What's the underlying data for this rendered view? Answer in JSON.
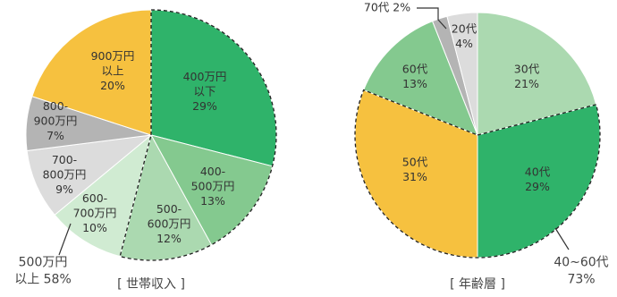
{
  "chart_data": [
    {
      "type": "pie",
      "caption": "[ 世帯収入 ]",
      "slices": [
        {
          "label": [
            "400万円",
            "以下",
            "29%"
          ],
          "value": 29,
          "color": "#2fb36a",
          "text_color": "#333333"
        },
        {
          "label": [
            "400-",
            "500万円",
            "13%"
          ],
          "value": 13,
          "color": "#84c98f",
          "text_color": "#333333"
        },
        {
          "label": [
            "500-",
            "600万円",
            "12%"
          ],
          "value": 12,
          "color": "#abd9b0",
          "text_color": "#333333"
        },
        {
          "label": [
            "600-",
            "700万円",
            "10%"
          ],
          "value": 10,
          "color": "#d0ebd2",
          "text_color": "#333333"
        },
        {
          "label": [
            "700-",
            "800万円",
            "9%"
          ],
          "value": 9,
          "color": "#dcdcdc",
          "text_color": "#333333"
        },
        {
          "label": [
            "800-",
            "900万円",
            "7%"
          ],
          "value": 7,
          "color": "#b4b4b4",
          "text_color": "#333333"
        },
        {
          "label": [
            "900万円",
            "以上",
            "20%"
          ],
          "value": 20,
          "color": "#f6c13f",
          "text_color": "#333333"
        }
      ],
      "group_callout": {
        "lines": [
          "500万円",
          "以上 58%"
        ]
      }
    },
    {
      "type": "pie",
      "caption": "[ 年齢層 ]",
      "slices": [
        {
          "label": [
            "30代",
            "21%"
          ],
          "value": 21,
          "color": "#abd9b0",
          "text_color": "#333333"
        },
        {
          "label": [
            "40代",
            "29%"
          ],
          "value": 29,
          "color": "#2fb36a",
          "text_color": "#333333"
        },
        {
          "label": [
            "50代",
            "31%"
          ],
          "value": 31,
          "color": "#f6c13f",
          "text_color": "#333333"
        },
        {
          "label": [
            "60代",
            "13%"
          ],
          "value": 13,
          "color": "#84c98f",
          "text_color": "#333333"
        },
        {
          "label": [
            "70代 2%"
          ],
          "value": 2,
          "color": "#b4b4b4",
          "text_color": "#333333",
          "external": true
        },
        {
          "label": [
            "20代",
            "4%"
          ],
          "value": 4,
          "color": "#dcdcdc",
          "text_color": "#333333"
        }
      ],
      "group_callout": {
        "lines": [
          "40~60代",
          "73%"
        ]
      }
    }
  ]
}
